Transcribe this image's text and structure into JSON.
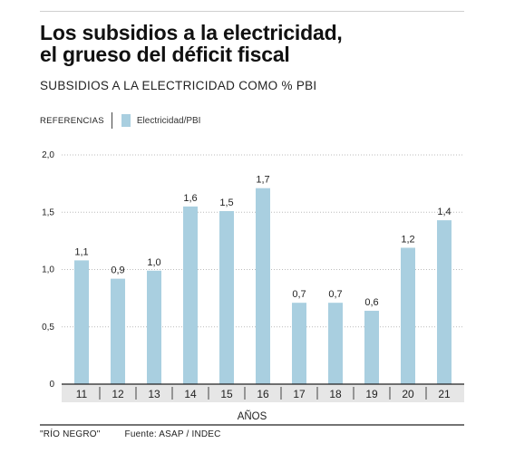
{
  "header": {
    "title_line1": "Los subsidios a la electricidad,",
    "title_line2": "el grueso del déficit fiscal",
    "subtitle": "SUBSIDIOS A LA ELECTRICIDAD COMO % PBI"
  },
  "legend": {
    "title": "REFERENCIAS",
    "label": "Electricidad/PBI"
  },
  "colors": {
    "bar": "#a9cfe0",
    "grid": "#bcbcbc",
    "axis": "#222222",
    "xband": "#e6e6e6"
  },
  "chart_data": {
    "type": "bar",
    "categories": [
      "11",
      "12",
      "13",
      "14",
      "15",
      "16",
      "17",
      "18",
      "19",
      "20",
      "21"
    ],
    "values": [
      1.1,
      0.9,
      1.0,
      1.6,
      1.5,
      1.7,
      0.7,
      0.7,
      0.6,
      1.2,
      1.4
    ],
    "value_labels": [
      "1,1",
      "0,9",
      "1,0",
      "1,6",
      "1,5",
      "1,7",
      "0,7",
      "0,7",
      "0,6",
      "1,2",
      "1,4"
    ],
    "bar_heights": [
      1.08,
      0.92,
      0.99,
      1.55,
      1.51,
      1.71,
      0.71,
      0.71,
      0.64,
      1.19,
      1.43
    ],
    "series": [
      {
        "name": "Electricidad/PBI"
      }
    ],
    "ylim": [
      0,
      2.0
    ],
    "yticks": [
      0,
      0.5,
      1.0,
      1.5,
      2.0
    ],
    "ytick_labels": [
      "0",
      "0,5",
      "1,0",
      "1,5",
      "2,0"
    ],
    "xlabel": "AÑOS",
    "ylabel": "",
    "grid": true
  },
  "footer": {
    "publisher": "\"RÍO NEGRO\"",
    "source": "Fuente: ASAP / INDEC"
  }
}
